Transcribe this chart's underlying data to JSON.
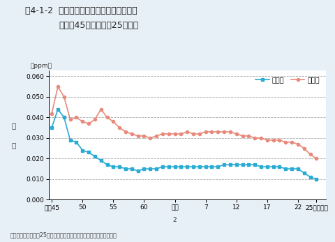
{
  "title_line1": "围4-1-2  二酸化窒素濃度の年平均値の推移",
  "title_line2": "（昭和45年度～平成25年度）",
  "ylabel_top": "濃",
  "ylabel_bot": "度",
  "ppm_label": "（ppm）",
  "source_text": "資料：環境省「平成25年度大気汚染状況について（報道発表資料）」",
  "xtick_labels": [
    "昭和45",
    "50",
    "55",
    "60",
    "平成25年度)",
    "7",
    "12",
    "17",
    "22",
    "25（年度）"
  ],
  "xtick_positions": [
    1970,
    1975,
    1980,
    1985,
    1990,
    1995,
    2000,
    2005,
    2010,
    2013
  ],
  "ylim": [
    0.0,
    0.063
  ],
  "yticks": [
    0.0,
    0.01,
    0.02,
    0.03,
    0.04,
    0.05,
    0.06
  ],
  "legend_general": "一般局",
  "legend_road": "自排局",
  "color_general": "#29ABD4",
  "color_road": "#E8897A",
  "bg_color": "#E8F0F7",
  "plot_bg": "#FFFFFF",
  "general_years": [
    1970,
    1971,
    1972,
    1973,
    1974,
    1975,
    1976,
    1977,
    1978,
    1979,
    1980,
    1981,
    1982,
    1983,
    1984,
    1985,
    1986,
    1987,
    1988,
    1989,
    1990,
    1991,
    1992,
    1993,
    1994,
    1995,
    1996,
    1997,
    1998,
    1999,
    2000,
    2001,
    2002,
    2003,
    2004,
    2005,
    2006,
    2007,
    2008,
    2009,
    2010,
    2011,
    2012,
    2013
  ],
  "general_values": [
    0.035,
    0.044,
    0.04,
    0.029,
    0.028,
    0.024,
    0.023,
    0.021,
    0.019,
    0.017,
    0.016,
    0.016,
    0.015,
    0.015,
    0.014,
    0.015,
    0.015,
    0.015,
    0.016,
    0.016,
    0.016,
    0.016,
    0.016,
    0.016,
    0.016,
    0.016,
    0.016,
    0.016,
    0.017,
    0.017,
    0.017,
    0.017,
    0.017,
    0.017,
    0.016,
    0.016,
    0.016,
    0.016,
    0.015,
    0.015,
    0.015,
    0.013,
    0.011,
    0.01
  ],
  "road_years": [
    1970,
    1971,
    1972,
    1973,
    1974,
    1975,
    1976,
    1977,
    1978,
    1979,
    1980,
    1981,
    1982,
    1983,
    1984,
    1985,
    1986,
    1987,
    1988,
    1989,
    1990,
    1991,
    1992,
    1993,
    1994,
    1995,
    1996,
    1997,
    1998,
    1999,
    2000,
    2001,
    2002,
    2003,
    2004,
    2005,
    2006,
    2007,
    2008,
    2009,
    2010,
    2011,
    2012,
    2013
  ],
  "road_values": [
    0.042,
    0.055,
    0.05,
    0.039,
    0.04,
    0.038,
    0.037,
    0.039,
    0.044,
    0.04,
    0.038,
    0.035,
    0.033,
    0.032,
    0.031,
    0.031,
    0.03,
    0.031,
    0.032,
    0.032,
    0.032,
    0.032,
    0.033,
    0.032,
    0.032,
    0.033,
    0.033,
    0.033,
    0.033,
    0.033,
    0.032,
    0.031,
    0.031,
    0.03,
    0.03,
    0.029,
    0.029,
    0.029,
    0.028,
    0.028,
    0.027,
    0.025,
    0.022,
    0.02
  ]
}
